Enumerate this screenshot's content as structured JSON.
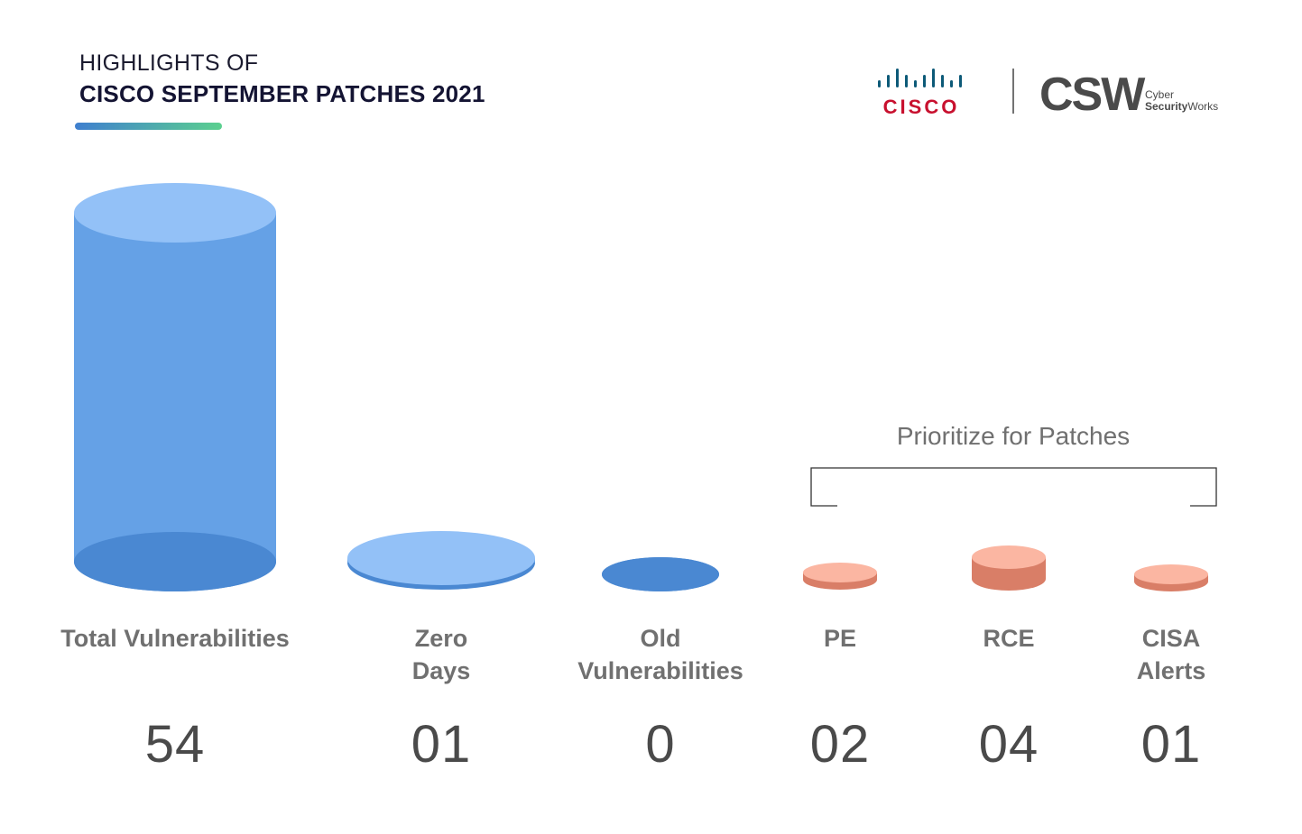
{
  "header": {
    "line1": "HIGHLIGHTS OF",
    "line2": "CISCO SEPTEMBER  PATCHES 2021"
  },
  "logos": {
    "cisco_text": "CISCO",
    "csw_text": "CSW",
    "csw_sub1": "Cyber",
    "csw_sub2_bold": "Security",
    "csw_sub2": "Works"
  },
  "colors": {
    "blue_side": "#65a1e6",
    "blue_top": "#93c1f7",
    "blue_bottom": "#4a88d2",
    "salmon_top": "#fbb6a2",
    "salmon_side": "#d97e67",
    "salmon_bottom": "#d97e67"
  },
  "chart_data": {
    "type": "bar",
    "style": "3d-cylinder",
    "title": "HIGHLIGHTS OF CISCO SEPTEMBER PATCHES 2021",
    "categories": [
      "Total Vulnerabilities",
      "Zero\nDays",
      "Old\nVulnerabilities",
      "PE",
      "RCE",
      "CISA\nAlerts"
    ],
    "values": [
      54,
      1,
      0,
      2,
      4,
      1
    ],
    "value_labels": [
      "54",
      "01",
      "0",
      "02",
      "04",
      "01"
    ],
    "annotation": {
      "text": "Prioritize for Patches",
      "spans_categories": [
        "PE",
        "RCE",
        "CISA\nAlerts"
      ]
    },
    "xlabel": "",
    "ylabel": "",
    "ylim": [
      0,
      54
    ],
    "grid": false,
    "legend": "none"
  }
}
